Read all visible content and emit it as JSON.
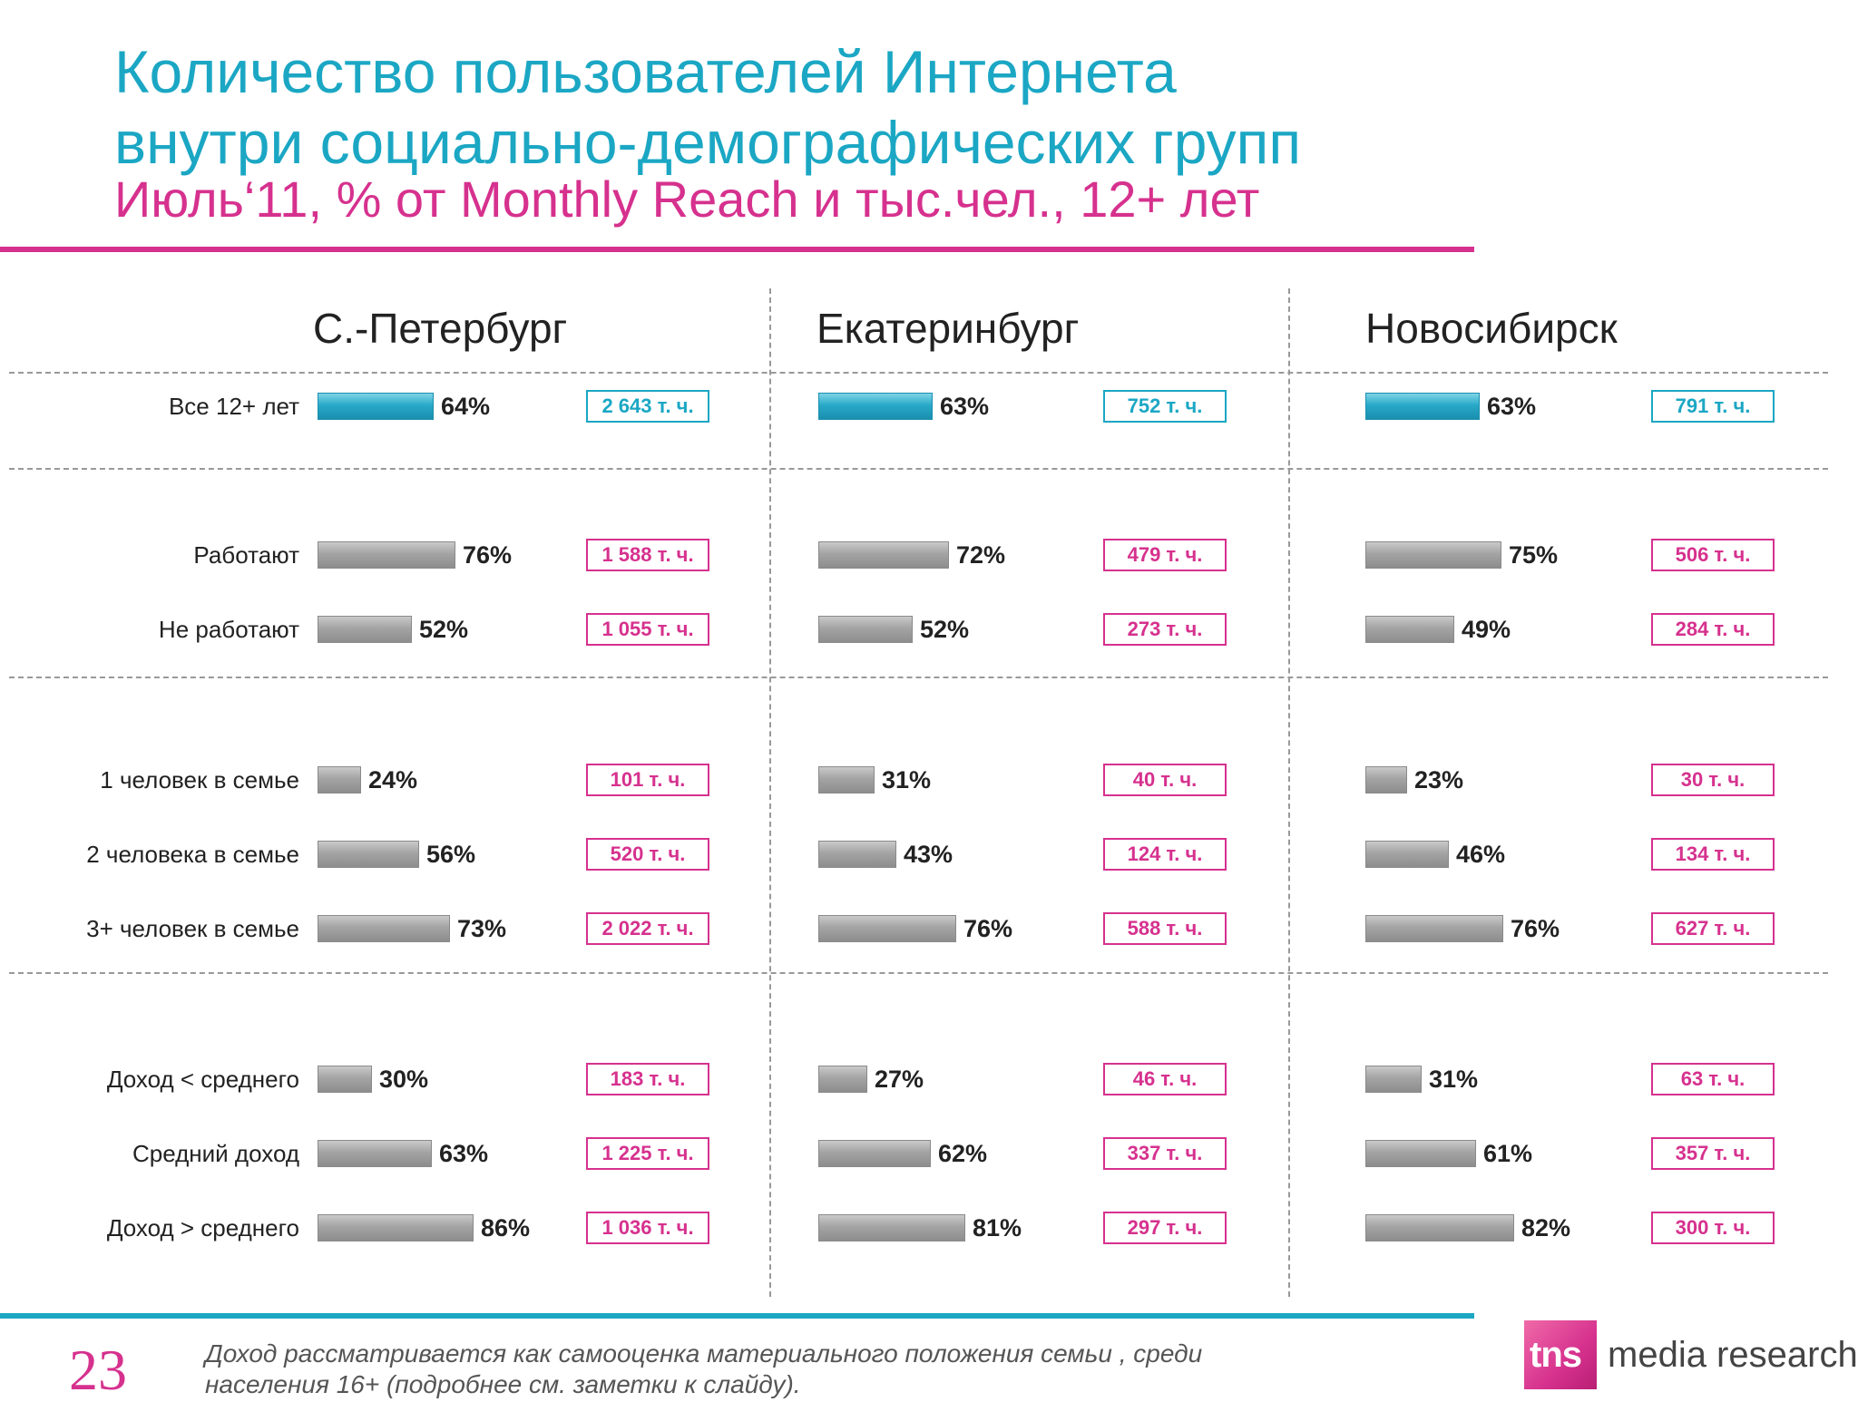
{
  "header": {
    "title_line1": "Количество пользователей Интернета",
    "title_line2": "внутри социально-демографических групп",
    "subtitle": "Июль‘11, % от Monthly Reach и тыс.чел., 12+ лет"
  },
  "footer": {
    "page_number": "23",
    "note_line1": "Доход рассматривается как самооценка материального положения семьи , среди",
    "note_line2": "населения 16+ (подробнее см. заметки к слайду).",
    "logo_tns": "tns",
    "logo_text": "media research"
  },
  "colors": {
    "title": "#1ba7c4",
    "accent": "#d6318e",
    "highlight_bar": "#29a9c9",
    "bar": "#a4a4a4"
  },
  "chart_data": {
    "type": "bar",
    "orientation": "horizontal",
    "unit": "%",
    "xlim": [
      0,
      100
    ],
    "grid": false,
    "categories": [
      "Все 12+ лет",
      "Работают",
      "Не работают",
      "1 человек в семье",
      "2 человека в семье",
      "3+ человек в семье",
      "Доход < среднего",
      "Средний доход",
      "Доход > среднего"
    ],
    "series": [
      {
        "name": "С.-Петербург",
        "values": [
          64,
          76,
          52,
          24,
          56,
          73,
          30,
          63,
          86
        ],
        "absolute": [
          "2 643 т. ч.",
          "1 588 т. ч.",
          "1 055 т. ч.",
          "101 т. ч.",
          "520 т. ч.",
          "2 022 т. ч.",
          "183 т. ч.",
          "1 225 т. ч.",
          "1 036 т. ч."
        ]
      },
      {
        "name": "Екатеринбург",
        "values": [
          63,
          72,
          52,
          31,
          43,
          76,
          27,
          62,
          81
        ],
        "absolute": [
          "752 т. ч.",
          "479 т. ч.",
          "273 т. ч.",
          "40 т. ч.",
          "124 т. ч.",
          "588 т. ч.",
          "46 т. ч.",
          "337 т. ч.",
          "297 т. ч."
        ]
      },
      {
        "name": "Новосибирск",
        "values": [
          63,
          75,
          49,
          23,
          46,
          76,
          31,
          61,
          82
        ],
        "absolute": [
          "791 т. ч.",
          "506 т. ч.",
          "284 т. ч.",
          "30 т. ч.",
          "134 т. ч.",
          "627 т. ч.",
          "63 т. ч.",
          "357 т. ч.",
          "300 т. ч."
        ]
      }
    ]
  }
}
